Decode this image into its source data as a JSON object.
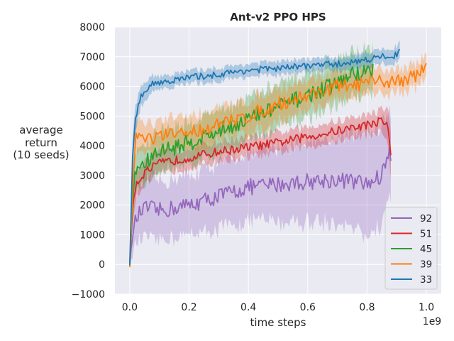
{
  "chart_data": {
    "type": "line",
    "title": "Ant-v2 PPO HPS",
    "xlabel": "time steps",
    "ylabel_lines": [
      "average",
      "return",
      "(10 seeds)"
    ],
    "x_offset_label": "1e9",
    "xlim": [
      -0.05,
      1.05
    ],
    "ylim": [
      -1000,
      8000
    ],
    "xticks": [
      0.0,
      0.2,
      0.4,
      0.6,
      0.8,
      1.0
    ],
    "xtick_labels": [
      "0.0",
      "0.2",
      "0.4",
      "0.6",
      "0.8",
      "1.0"
    ],
    "yticks": [
      -1000,
      0,
      1000,
      2000,
      3000,
      4000,
      5000,
      6000,
      7000,
      8000
    ],
    "ytick_labels": [
      "−1000",
      "0",
      "1000",
      "2000",
      "3000",
      "4000",
      "5000",
      "6000",
      "7000",
      "8000"
    ],
    "grid": true,
    "legend_position": "lower-right",
    "series": [
      {
        "name": "33",
        "color": "#1f77b4",
        "x": [
          0.0,
          0.01,
          0.02,
          0.04,
          0.07,
          0.1,
          0.15,
          0.2,
          0.3,
          0.4,
          0.5,
          0.6,
          0.7,
          0.8,
          0.85,
          0.9,
          0.91
        ],
        "y": [
          0,
          3800,
          5000,
          5700,
          6050,
          6150,
          6200,
          6300,
          6400,
          6550,
          6600,
          6700,
          6750,
          6900,
          7000,
          7050,
          7250
        ],
        "band": [
          0,
          500,
          400,
          300,
          250,
          200,
          200,
          200,
          200,
          200,
          200,
          200,
          200,
          220,
          220,
          230,
          250
        ],
        "noise": 110
      },
      {
        "name": "39",
        "color": "#ff7f0e",
        "x": [
          0.0,
          0.01,
          0.02,
          0.05,
          0.1,
          0.2,
          0.3,
          0.4,
          0.5,
          0.6,
          0.7,
          0.8,
          0.9,
          0.95,
          1.0
        ],
        "y": [
          -100,
          2500,
          4400,
          4200,
          4300,
          4450,
          4700,
          5000,
          5400,
          5700,
          6000,
          6100,
          6200,
          6300,
          6600
        ],
        "band": [
          150,
          600,
          500,
          450,
          450,
          500,
          500,
          500,
          500,
          450,
          400,
          400,
          350,
          350,
          350
        ],
        "noise": 240
      },
      {
        "name": "45",
        "color": "#2ca02c",
        "x": [
          0.0,
          0.01,
          0.02,
          0.05,
          0.1,
          0.2,
          0.3,
          0.4,
          0.5,
          0.6,
          0.7,
          0.75,
          0.8,
          0.82
        ],
        "y": [
          0,
          2200,
          3200,
          3400,
          3800,
          4100,
          4500,
          4900,
          5300,
          5700,
          6100,
          6400,
          6500,
          6600
        ],
        "band": [
          0,
          700,
          600,
          600,
          600,
          600,
          650,
          650,
          650,
          650,
          650,
          650,
          650,
          650
        ],
        "noise": 280
      },
      {
        "name": "51",
        "color": "#d62728",
        "x": [
          0.0,
          0.01,
          0.02,
          0.05,
          0.1,
          0.2,
          0.3,
          0.4,
          0.5,
          0.6,
          0.7,
          0.8,
          0.85,
          0.87,
          0.88
        ],
        "y": [
          0,
          2000,
          2700,
          3100,
          3400,
          3600,
          3800,
          3950,
          4100,
          4300,
          4500,
          4700,
          4850,
          4700,
          3700
        ],
        "band": [
          0,
          500,
          400,
          350,
          350,
          300,
          300,
          300,
          300,
          300,
          300,
          300,
          350,
          500,
          700
        ],
        "noise": 150
      },
      {
        "name": "92",
        "color": "#9467bd",
        "x": [
          0.0,
          0.01,
          0.02,
          0.04,
          0.06,
          0.1,
          0.15,
          0.2,
          0.3,
          0.4,
          0.5,
          0.6,
          0.7,
          0.75,
          0.8,
          0.85,
          0.87,
          0.88
        ],
        "y": [
          0,
          1000,
          1500,
          1800,
          1900,
          1800,
          1900,
          2000,
          2300,
          2600,
          2700,
          2800,
          2850,
          2800,
          2700,
          3000,
          3800,
          3500
        ],
        "band": [
          0,
          600,
          700,
          800,
          900,
          900,
          900,
          900,
          1000,
          1000,
          1100,
          1200,
          1300,
          1400,
          1600,
          1500,
          1300,
          1200
        ],
        "noise": 280
      }
    ],
    "legend_order": [
      "92",
      "51",
      "45",
      "39",
      "33"
    ]
  }
}
